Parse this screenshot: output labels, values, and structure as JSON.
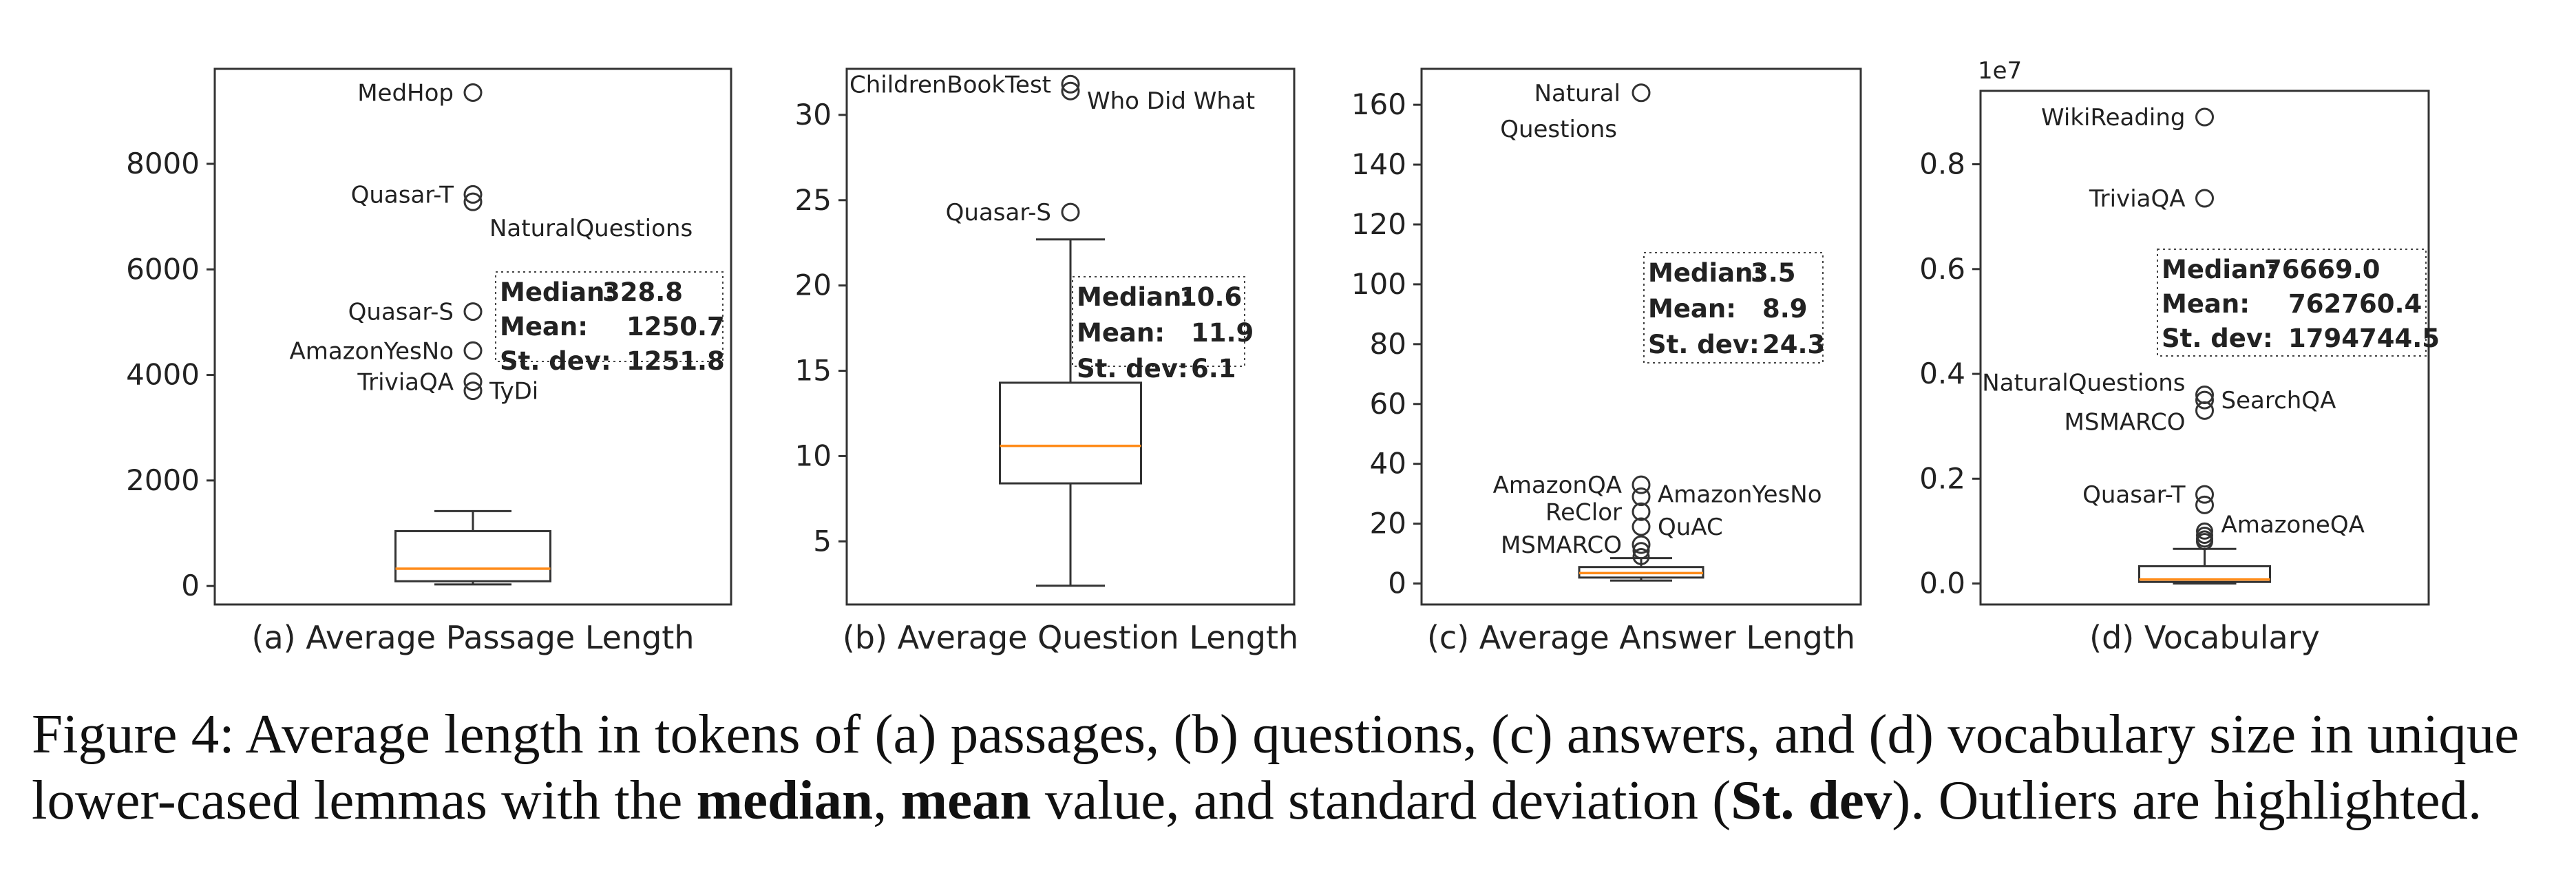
{
  "chart_data": [
    {
      "type": "box",
      "xlabel": "(a) Average Passage Length",
      "ylim": [
        -350,
        9800
      ],
      "yticks": [
        0,
        2000,
        4000,
        6000,
        8000
      ],
      "box": {
        "min": 30,
        "q1": 90,
        "median": 328.8,
        "q3": 1040,
        "max": 1420
      },
      "outliers": [
        {
          "label": "MedHop",
          "value": 9350,
          "side": "left"
        },
        {
          "label": "Quasar-T",
          "value": 7420,
          "side": "left"
        },
        {
          "label": "NaturalQuestions",
          "value": 7280,
          "side": "right"
        },
        {
          "label": "Quasar-S",
          "value": 5200,
          "side": "left"
        },
        {
          "label": "AmazonYesNo",
          "value": 4460,
          "side": "left"
        },
        {
          "label": "TriviaQA",
          "value": 3870,
          "side": "left"
        },
        {
          "label": "TyDi",
          "value": 3700,
          "side": "right"
        }
      ],
      "stats": {
        "median_label": "Median:",
        "median": "328.8",
        "mean_label": "Mean:",
        "mean": "1250.7",
        "std_label": "St. dev:",
        "std": "1251.8"
      }
    },
    {
      "type": "box",
      "xlabel": "(b) Average Question Length",
      "ylim": [
        1.3,
        32.7
      ],
      "yticks": [
        5,
        10,
        15,
        20,
        25,
        30
      ],
      "box": {
        "min": 2.4,
        "q1": 8.4,
        "median": 10.6,
        "q3": 14.3,
        "max": 22.7
      },
      "outliers": [
        {
          "label": "ChildrenBookTest",
          "value": 31.8,
          "side": "left"
        },
        {
          "label": "Who Did What",
          "value": 31.4,
          "side": "right"
        },
        {
          "label": "Quasar-S",
          "value": 24.3,
          "side": "left"
        }
      ],
      "stats": {
        "median_label": "Median:",
        "median": "10.6",
        "mean_label": "Mean:",
        "mean": "11.9",
        "std_label": "St. dev:",
        "std": "6.1"
      }
    },
    {
      "type": "box",
      "xlabel": "(c) Average Answer Length",
      "ylim": [
        -7,
        172
      ],
      "yticks": [
        0,
        20,
        40,
        60,
        80,
        100,
        120,
        140,
        160
      ],
      "box": {
        "min": 1,
        "q1": 2,
        "median": 3.5,
        "q3": 5.5,
        "max": 8.5
      },
      "outliers": [
        {
          "label": "Natural Questions",
          "value": 164,
          "side": "left"
        },
        {
          "label": "AmazonQA",
          "value": 33,
          "side": "left"
        },
        {
          "label": "AmazonYesNo",
          "value": 29,
          "side": "right"
        },
        {
          "label": "ReClor",
          "value": 24,
          "side": "left"
        },
        {
          "label": "QuAC",
          "value": 19,
          "side": "right"
        },
        {
          "label": "MSMARCO",
          "value": 13,
          "side": "left"
        }
      ],
      "extra_outliers": [
        11,
        9
      ],
      "stats": {
        "median_label": "Median:",
        "median": "3.5",
        "mean_label": "Mean:",
        "mean": "8.9",
        "std_label": "St. dev:",
        "std": "24.3"
      }
    },
    {
      "type": "box",
      "xlabel": "(d) Vocabulary",
      "offset_text": "1e7",
      "ylim": [
        -0.04,
        0.94
      ],
      "yticks": [
        0.0,
        0.2,
        0.4,
        0.6,
        0.8
      ],
      "box": {
        "min": 0.0,
        "q1": 0.003,
        "median": 0.0077,
        "q3": 0.033,
        "max": 0.066
      },
      "outliers": [
        {
          "label": "WikiReading",
          "value": 0.89,
          "side": "left"
        },
        {
          "label": "TriviaQA",
          "value": 0.735,
          "side": "left"
        },
        {
          "label": "NaturalQuestions",
          "value": 0.36,
          "side": "left"
        },
        {
          "label": "SearchQA",
          "value": 0.35,
          "side": "right"
        },
        {
          "label": "MSMARCO",
          "value": 0.33,
          "side": "left"
        },
        {
          "label": "Quasar-T",
          "value": 0.17,
          "side": "left"
        },
        {
          "label": "AmazoneQA",
          "value": 0.15,
          "side": "right"
        }
      ],
      "extra_outliers": [
        0.1,
        0.092,
        0.085,
        0.08
      ],
      "stats": {
        "median_label": "Median:",
        "median": "76669.0",
        "mean_label": "Mean:",
        "mean": "762760.4",
        "std_label": "St. dev:",
        "std": "1794744.5"
      }
    }
  ],
  "caption": {
    "p1": "Figure 4:  Average length in tokens of (a) passages, (b) questions, (c) answers, and (d) vocabulary size in unique lower-cased lemmas with the ",
    "b1": "median",
    "p2": ", ",
    "b2": "mean",
    "p3": " value, and standard deviation (",
    "b3": "St. dev",
    "p4": "). Outliers are highlighted."
  }
}
